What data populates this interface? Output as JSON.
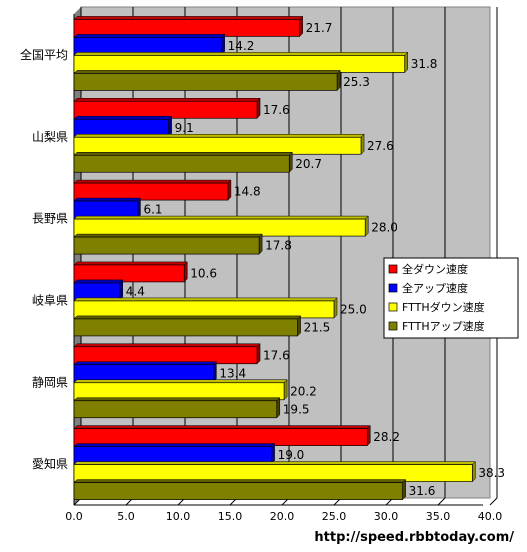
{
  "chart_data": {
    "type": "bar",
    "orientation": "horizontal",
    "categories": [
      "全国平均",
      "山梨県",
      "長野県",
      "岐阜県",
      "静岡県",
      "愛知県"
    ],
    "series": [
      {
        "name": "全ダウン速度",
        "color": "#ff0000",
        "values": [
          21.7,
          17.6,
          14.8,
          10.6,
          17.6,
          28.2
        ]
      },
      {
        "name": "全アップ速度",
        "color": "#0000ff",
        "values": [
          14.2,
          9.1,
          6.1,
          4.4,
          13.4,
          19.0
        ]
      },
      {
        "name": "FTTHダウン速度",
        "color": "#ffff00",
        "values": [
          31.8,
          27.6,
          28.0,
          25.0,
          20.2,
          38.3
        ]
      },
      {
        "name": "FTTHアップ速度",
        "color": "#808000",
        "values": [
          25.3,
          20.7,
          17.8,
          21.5,
          19.5,
          31.6
        ]
      }
    ],
    "value_labels": [
      [
        "21.7",
        "17.6",
        "14.8",
        "10.6",
        "17.6",
        "28.2"
      ],
      [
        "14.2",
        "9.1",
        "6.1",
        "4.4",
        "13.4",
        "19.0"
      ],
      [
        "31.8",
        "27.6",
        "28.0",
        "25.0",
        "20.2",
        "38.3"
      ],
      [
        "25.3",
        "20.7",
        "17.8",
        "21.5",
        "19.5",
        "31.6"
      ]
    ],
    "xlim": [
      0,
      40
    ],
    "ticks": [
      "0.0",
      "5.0",
      "10.0",
      "15.0",
      "20.0",
      "25.0",
      "30.0",
      "35.0",
      "40.0"
    ],
    "grid": true,
    "legend_position": "right"
  },
  "source": "http://speed.rbbtoday.com/",
  "colors": {
    "plot_background": "#c0c0c0",
    "wall": "#808080",
    "gridline": "#000000"
  }
}
